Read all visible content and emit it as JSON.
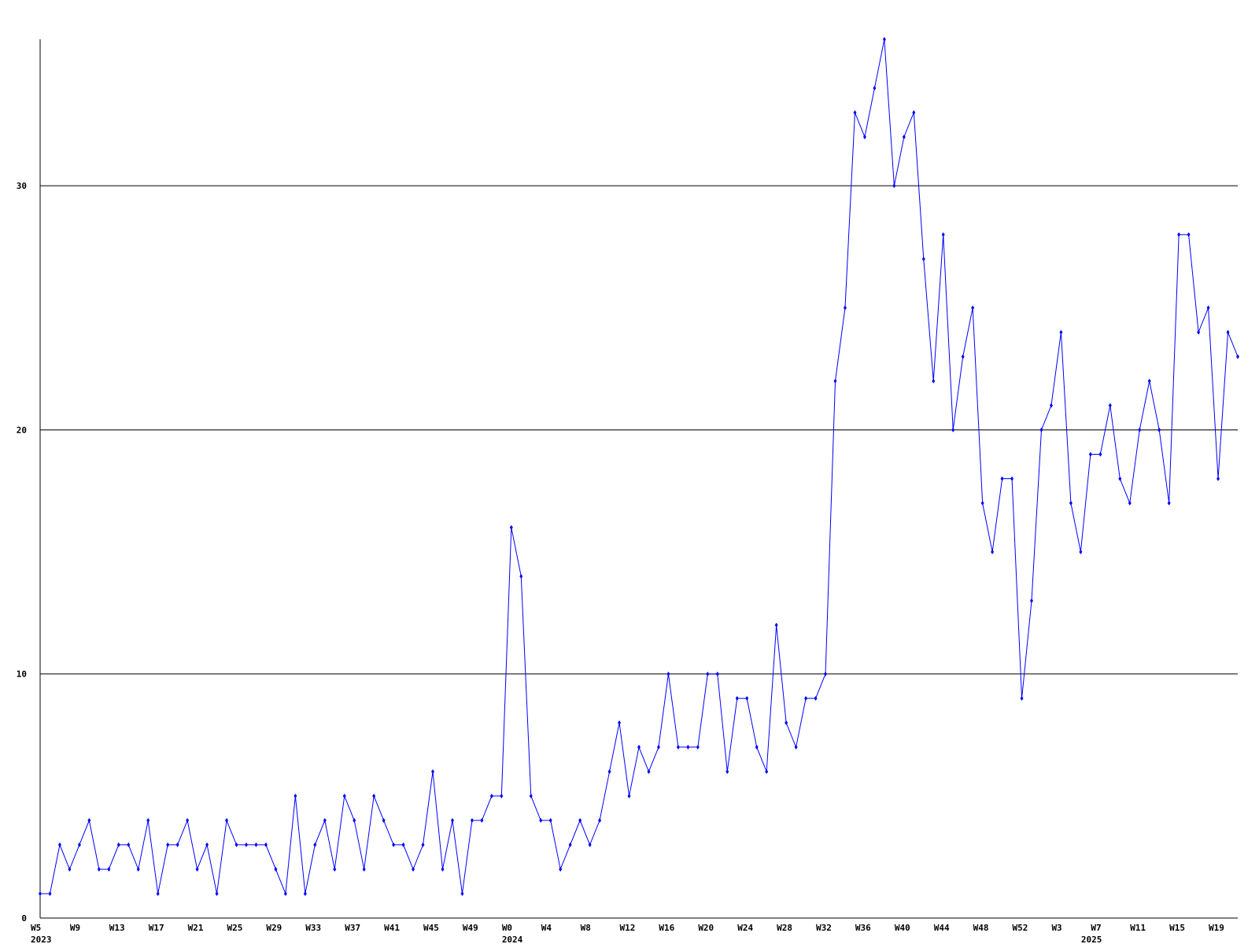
{
  "chart_data": {
    "type": "line",
    "categories": [
      "W5",
      null,
      null,
      null,
      "W9",
      null,
      null,
      null,
      "W13",
      null,
      null,
      null,
      "W17",
      null,
      null,
      null,
      "W21",
      null,
      null,
      null,
      "W25",
      null,
      null,
      null,
      "W29",
      null,
      null,
      null,
      "W33",
      null,
      null,
      null,
      "W37",
      null,
      null,
      null,
      "W41",
      null,
      null,
      null,
      "W45",
      null,
      null,
      null,
      "W49",
      null,
      null,
      null,
      "W0",
      null,
      null,
      null,
      "W4",
      null,
      null,
      null,
      "W8",
      null,
      null,
      null,
      "W12",
      null,
      null,
      null,
      "W16",
      null,
      null,
      null,
      "W20",
      null,
      null,
      null,
      "W24",
      null,
      null,
      null,
      "W28",
      null,
      null,
      null,
      "W32",
      null,
      null,
      null,
      "W36",
      null,
      null,
      null,
      "W40",
      null,
      null,
      null,
      "W44",
      null,
      null,
      null,
      "W48",
      null,
      null,
      null,
      "W52",
      null,
      null,
      null,
      "W3",
      null,
      null,
      null,
      "W7",
      null,
      null,
      null,
      "W11",
      null,
      null,
      null,
      "W15",
      null,
      null,
      null,
      "W19",
      null,
      null
    ],
    "year_labels": [
      "2023",
      null,
      null,
      null,
      null,
      null,
      null,
      null,
      null,
      null,
      null,
      null,
      null,
      null,
      null,
      null,
      null,
      null,
      null,
      null,
      null,
      null,
      null,
      null,
      null,
      null,
      null,
      null,
      null,
      null,
      null,
      null,
      null,
      null,
      null,
      null,
      null,
      null,
      null,
      null,
      null,
      null,
      null,
      null,
      null,
      null,
      null,
      null,
      "2024",
      null,
      null,
      null,
      null,
      null,
      null,
      null,
      null,
      null,
      null,
      null,
      null,
      null,
      null,
      null,
      null,
      null,
      null,
      null,
      null,
      null,
      null,
      null,
      null,
      null,
      null,
      null,
      null,
      null,
      null,
      null,
      null,
      null,
      null,
      null,
      null,
      null,
      null,
      null,
      null,
      null,
      null,
      null,
      null,
      null,
      null,
      null,
      null,
      null,
      null,
      null,
      null,
      null,
      null,
      null,
      null,
      null,
      null,
      "2025",
      null,
      null,
      null,
      null,
      null,
      null,
      null,
      null,
      null,
      null,
      null,
      null,
      null,
      null,
      null,
      null,
      null,
      null,
      null,
      null,
      null
    ],
    "series": [
      {
        "color": "#0000ff",
        "values": [
          1,
          1,
          3,
          2,
          3,
          4,
          2,
          2,
          3,
          3,
          2,
          4,
          1,
          3,
          3,
          4,
          2,
          3,
          1,
          4,
          3,
          3,
          3,
          3,
          2,
          1,
          5,
          1,
          3,
          4,
          2,
          5,
          4,
          2,
          5,
          4,
          3,
          3,
          2,
          3,
          6,
          2,
          4,
          1,
          4,
          4,
          5,
          5,
          16,
          14,
          5,
          4,
          4,
          2,
          3,
          4,
          3,
          4,
          6,
          8,
          5,
          7,
          6,
          7,
          10,
          7,
          7,
          7,
          10,
          10,
          6,
          9,
          9,
          7,
          6,
          12,
          8,
          7,
          9,
          9,
          10,
          22,
          25,
          33,
          32,
          34,
          36,
          30,
          32,
          33,
          27,
          22,
          28,
          20,
          23,
          25,
          17,
          15,
          18,
          18,
          9,
          13,
          20,
          21,
          24,
          17,
          15,
          19,
          19,
          21,
          18,
          17,
          20,
          22,
          20,
          17,
          28,
          28,
          24,
          25,
          18,
          24,
          23
        ]
      }
    ],
    "ylim": [
      0,
      36
    ],
    "yticks": [
      0,
      10,
      20,
      30
    ],
    "grid": true
  }
}
